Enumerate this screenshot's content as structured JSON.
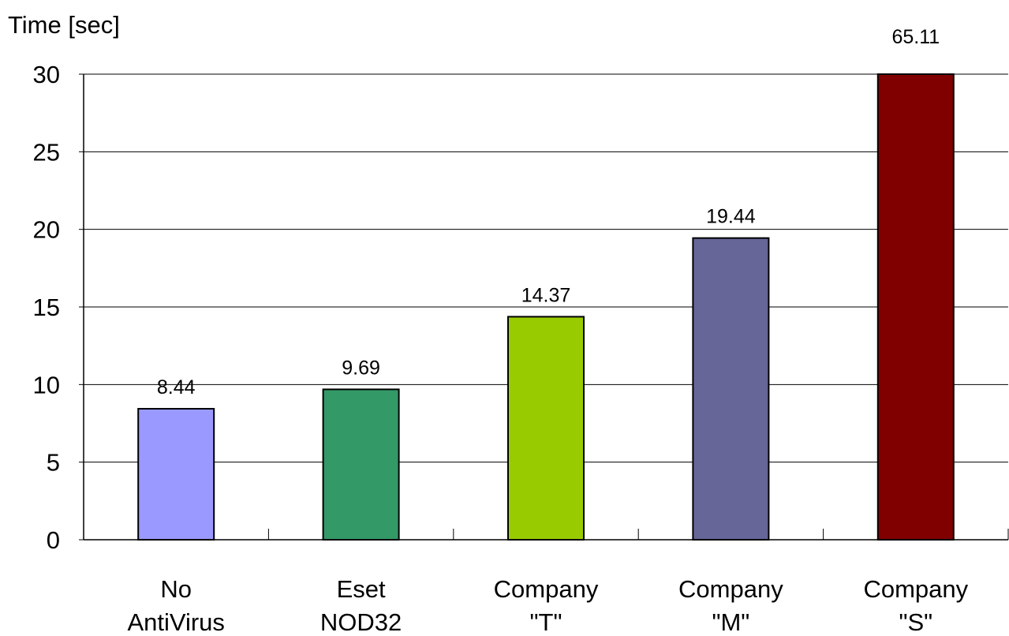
{
  "chart_data": {
    "type": "bar",
    "ylabel": "Time [sec]",
    "ylim": [
      0,
      30
    ],
    "yticks": [
      0,
      5,
      10,
      15,
      20,
      25,
      30
    ],
    "grid": true,
    "categories": [
      [
        "No",
        "AntiVirus"
      ],
      [
        "Eset",
        "NOD32"
      ],
      [
        "Company",
        "\"T\""
      ],
      [
        "Company",
        "\"M\""
      ],
      [
        "Company",
        "\"S\""
      ]
    ],
    "values": [
      8.44,
      9.69,
      14.37,
      19.44,
      65.11
    ],
    "value_labels": [
      "8.44",
      "9.69",
      "14.37",
      "19.44",
      "65.11"
    ],
    "colors": [
      "#9999FF",
      "#339966",
      "#99CC00",
      "#666699",
      "#800000"
    ]
  }
}
